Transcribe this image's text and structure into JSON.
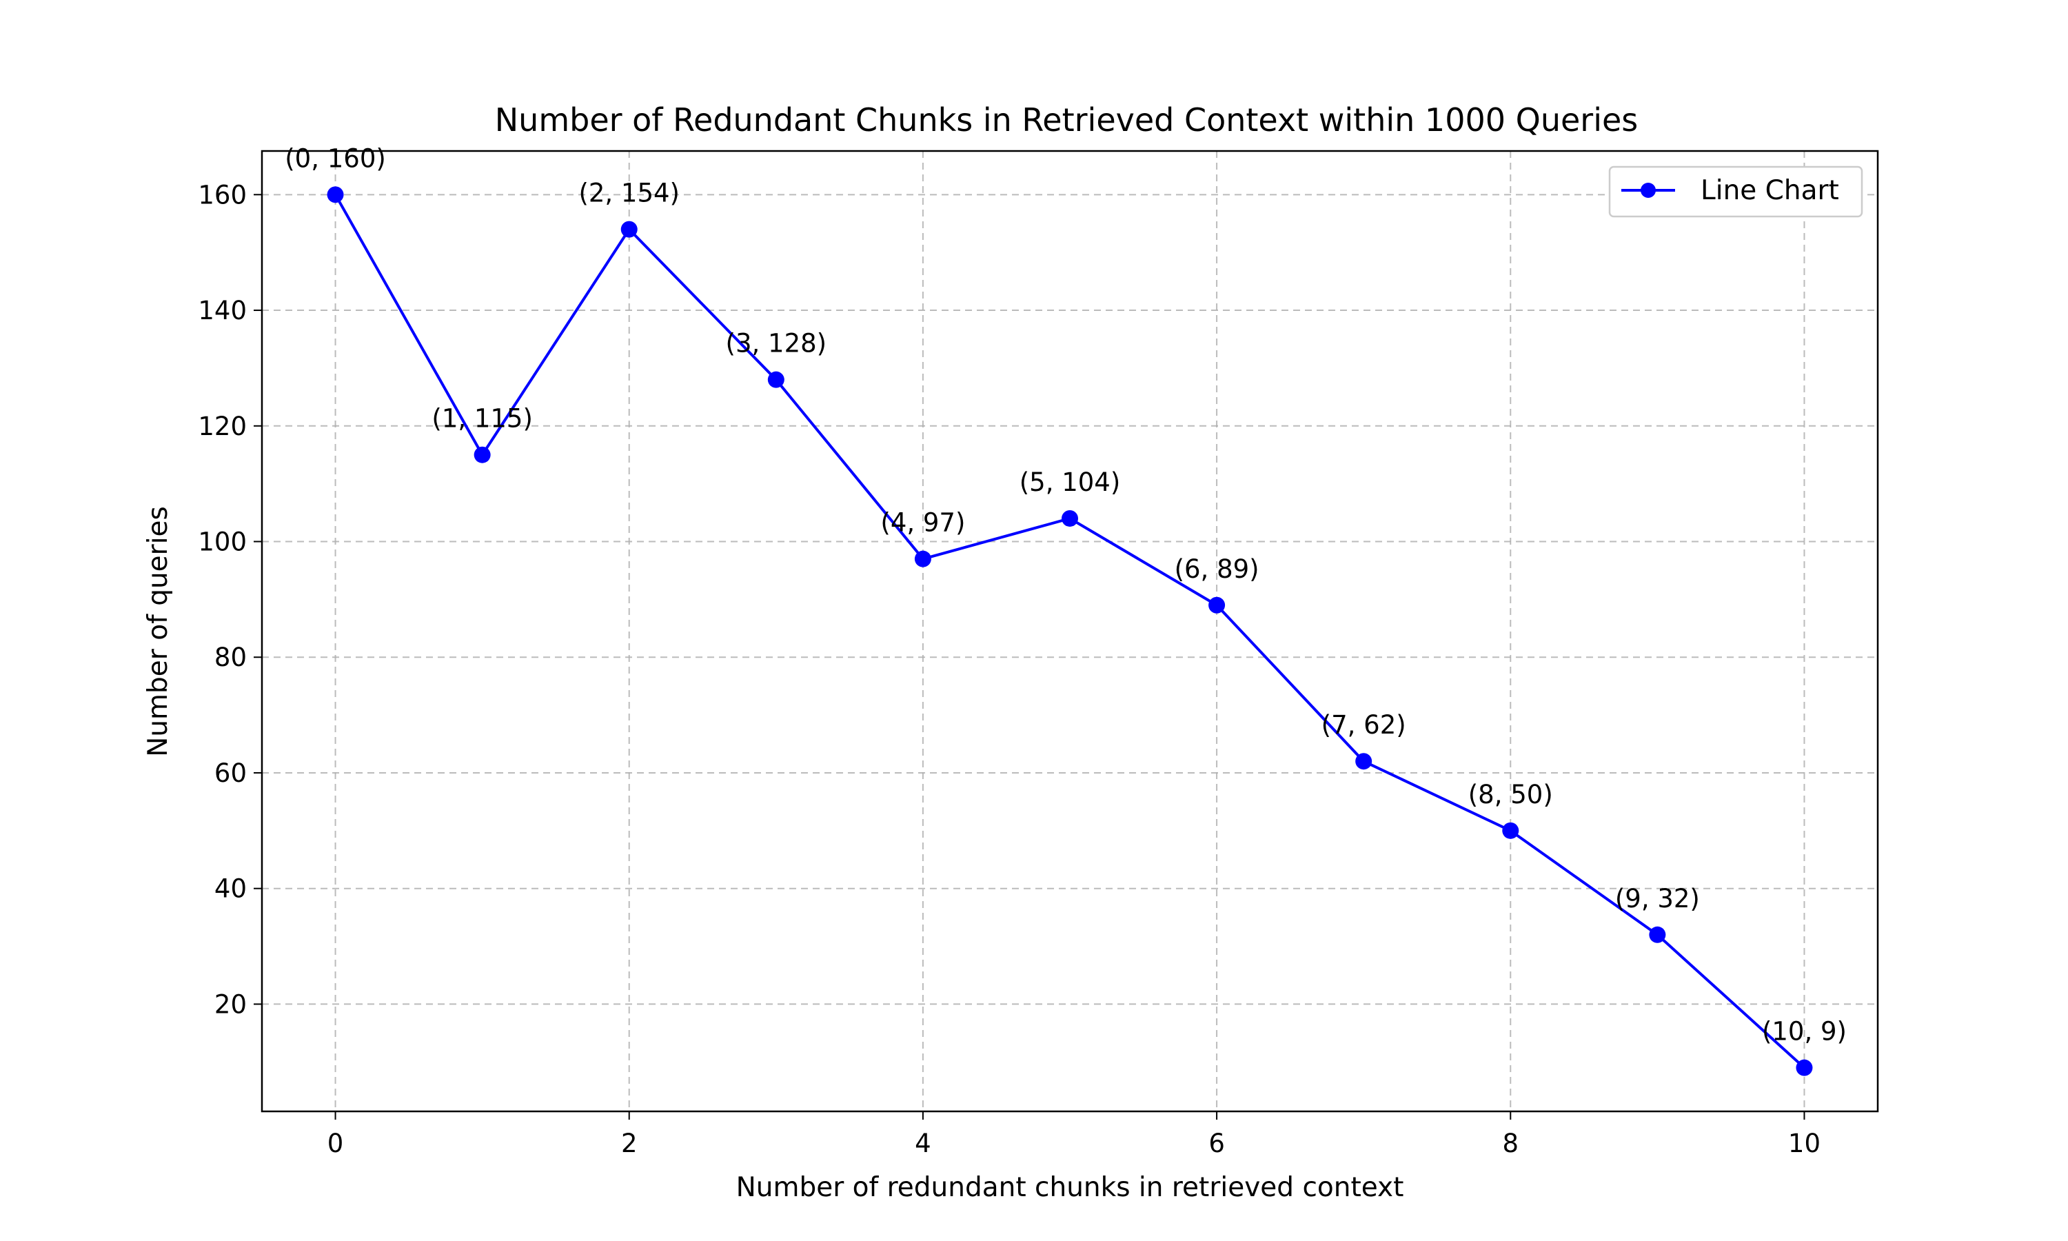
{
  "chart_data": {
    "type": "line",
    "title": "Number of Redundant Chunks in Retrieved Context within 1000 Queries",
    "xlabel": "Number of redundant chunks in retrieved context",
    "ylabel": "Number of queries",
    "x": [
      0,
      1,
      2,
      3,
      4,
      5,
      6,
      7,
      8,
      9,
      10
    ],
    "series": [
      {
        "name": "Line Chart",
        "values": [
          160,
          115,
          154,
          128,
          97,
          104,
          89,
          62,
          50,
          32,
          9
        ],
        "color": "#0000ff",
        "marker": "circle"
      }
    ],
    "annotations": [
      "(0, 160)",
      "(1, 115)",
      "(2, 154)",
      "(3, 128)",
      "(4, 97)",
      "(5, 104)",
      "(6, 89)",
      "(7, 62)",
      "(8, 50)",
      "(9, 32)",
      "(10, 9)"
    ],
    "xlim": [
      -0.5,
      10.5
    ],
    "ylim": [
      1.45,
      167.55
    ],
    "xticks": [
      0,
      2,
      4,
      6,
      8,
      10
    ],
    "yticks": [
      20,
      40,
      60,
      80,
      100,
      120,
      140,
      160
    ],
    "grid": true,
    "legend_position": "upper-right"
  }
}
